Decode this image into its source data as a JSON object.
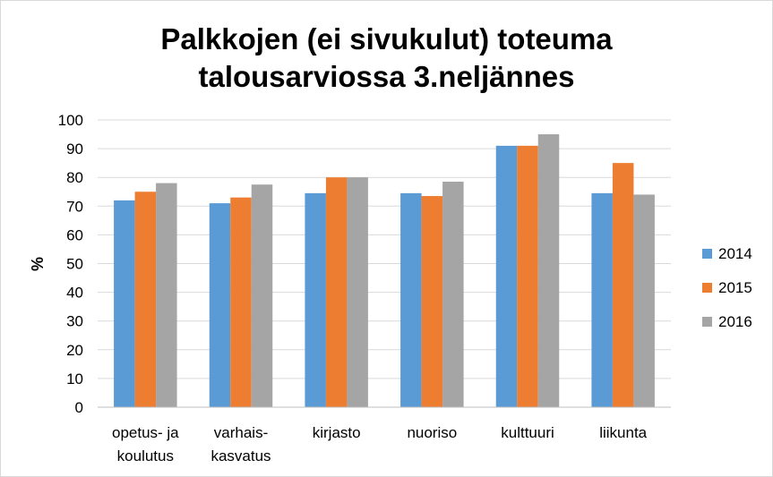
{
  "chart_data": {
    "type": "bar",
    "title_lines": [
      "Palkkojen (ei sivukulut) toteuma",
      "talousarviossa 3.neljännes"
    ],
    "xlabel": "",
    "ylabel": "%",
    "ylim": [
      0,
      100
    ],
    "yticks": [
      0,
      10,
      20,
      30,
      40,
      50,
      60,
      70,
      80,
      90,
      100
    ],
    "grid": true,
    "legend_position": "right",
    "categories": [
      [
        "opetus- ja",
        "koulutus"
      ],
      [
        "varhais-",
        "kasvatus"
      ],
      [
        "kirjasto"
      ],
      [
        "nuoriso"
      ],
      [
        "kulttuuri"
      ],
      [
        "liikunta"
      ]
    ],
    "series": [
      {
        "name": "2014",
        "color": "#5b9bd5",
        "values": [
          72,
          71,
          74.5,
          74.5,
          91,
          74.5
        ]
      },
      {
        "name": "2015",
        "color": "#ed7d31",
        "values": [
          75,
          73,
          80,
          73.5,
          91,
          85
        ]
      },
      {
        "name": "2016",
        "color": "#a5a5a5",
        "values": [
          78,
          77.5,
          80,
          78.5,
          95,
          74
        ]
      }
    ]
  }
}
